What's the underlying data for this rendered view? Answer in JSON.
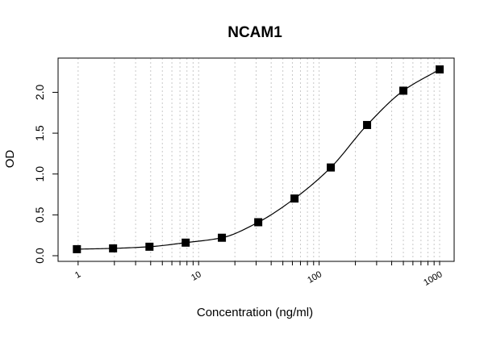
{
  "chart_data": {
    "type": "scatter",
    "title": "NCAM1",
    "xlabel": "Concentration (ng/ml)",
    "ylabel": "OD",
    "x_scale": "log",
    "xlim": [
      0.9,
      1000
    ],
    "ylim": [
      0,
      2.35
    ],
    "x_ticks": [
      {
        "value": 1,
        "label": "1"
      },
      {
        "value": 10,
        "label": "10"
      },
      {
        "value": 100,
        "label": "100"
      },
      {
        "value": 1000,
        "label": "1000"
      }
    ],
    "y_ticks": [
      {
        "value": 0.0,
        "label": "0.0"
      },
      {
        "value": 0.5,
        "label": "0.5"
      },
      {
        "value": 1.0,
        "label": "1.0"
      },
      {
        "value": 1.5,
        "label": "1.5"
      },
      {
        "value": 2.0,
        "label": "2.0"
      }
    ],
    "grid": "vertical dashed at log minor ticks",
    "series": [
      {
        "marker": "square",
        "fit": "4-parameter logistic curve",
        "x": [
          0.977,
          1.95,
          3.91,
          7.81,
          15.6,
          31.25,
          62.5,
          125,
          250,
          500,
          1000
        ],
        "y": [
          0.08,
          0.09,
          0.11,
          0.16,
          0.22,
          0.41,
          0.7,
          1.08,
          1.6,
          2.02,
          2.28
        ]
      }
    ],
    "colors": {
      "marker": "#000000",
      "line": "#000000",
      "grid": "#c8c8c8"
    }
  }
}
